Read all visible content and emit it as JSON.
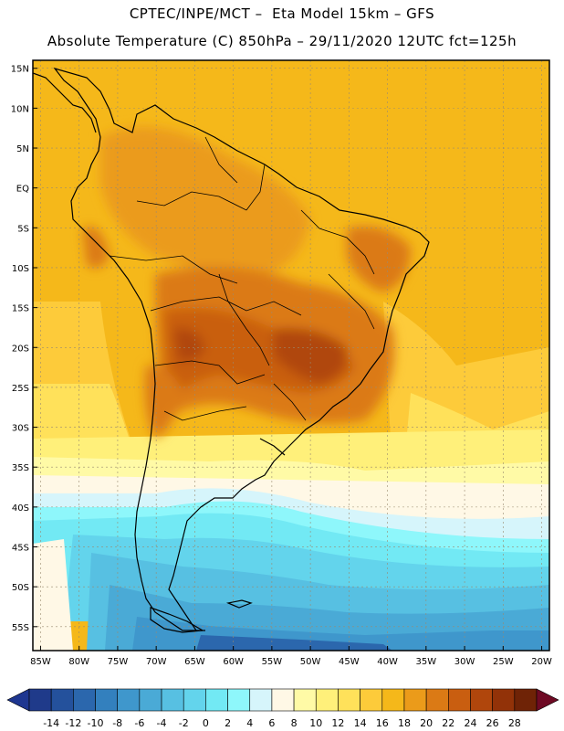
{
  "title_line1": "CPTEC/INPE/MCT –  Eta Model 15km – GFS",
  "title_line2": "Absolute Temperature (C) 850hPa – 29/11/2020 12UTC fct=125h",
  "lat_labels": [
    "15N",
    "10N",
    "5N",
    "EQ",
    "5S",
    "10S",
    "15S",
    "20S",
    "25S",
    "30S",
    "35S",
    "40S",
    "45S",
    "50S",
    "55S"
  ],
  "lon_labels": [
    "85W",
    "80W",
    "75W",
    "70W",
    "65W",
    "60W",
    "55W",
    "50W",
    "45W",
    "40W",
    "35W",
    "30W",
    "25W",
    "20W"
  ],
  "lat_values": [
    15,
    10,
    5,
    0,
    -5,
    -10,
    -15,
    -20,
    -25,
    -30,
    -35,
    -40,
    -45,
    -50,
    -55
  ],
  "lon_values": [
    -85,
    -80,
    -75,
    -70,
    -65,
    -60,
    -55,
    -50,
    -45,
    -40,
    -35,
    -30,
    -25,
    -20
  ],
  "colorbar": {
    "labels": [
      "-14",
      "-12",
      "-10",
      "-8",
      "-6",
      "-4",
      "-2",
      "0",
      "2",
      "4",
      "6",
      "8",
      "10",
      "12",
      "14",
      "16",
      "18",
      "20",
      "22",
      "24",
      "26",
      "28"
    ],
    "colors": [
      "#1f3a8a",
      "#24519c",
      "#2b67ad",
      "#3380be",
      "#3f97cc",
      "#4aaad6",
      "#57c0e2",
      "#63d4ec",
      "#72e9f4",
      "#8ef7fb",
      "#d6f5fb",
      "#fff8e6",
      "#fffaa6",
      "#fff07a",
      "#ffe15a",
      "#fdcb3a",
      "#f5b81a",
      "#eb9b1a",
      "#db7a15",
      "#c95e10",
      "#b0460c",
      "#923208",
      "#6f2306"
    ],
    "low_color": "#1e3690",
    "high_color": "#6e0a24"
  },
  "map": {
    "lon_min": -86,
    "lon_max": -19,
    "lat_min": -58,
    "lat_max": 16
  }
}
